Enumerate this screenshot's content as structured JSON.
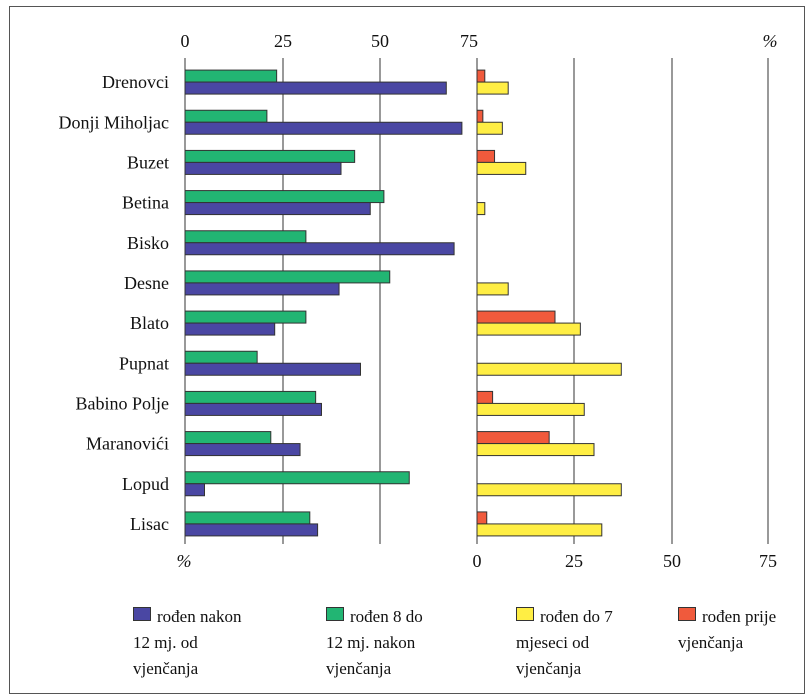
{
  "chart_data": {
    "type": "bar",
    "orientation": "horizontal",
    "categories": [
      "Drenovci",
      "Donji Miholjac",
      "Buzet",
      "Betina",
      "Bisko",
      "Desne",
      "Blato",
      "Pupnat",
      "Babino Polje",
      "Maranovići",
      "Lopud",
      "Lisac"
    ],
    "left_panel": {
      "ticks": [
        "0",
        "25",
        "50",
        "75"
      ],
      "unit_label_top": "%",
      "unit_label_bottom": "%",
      "xlim": [
        0,
        75
      ],
      "series": [
        {
          "key": "s8to12",
          "color": "#22b573",
          "values": [
            23.5,
            21,
            43.5,
            51,
            31,
            52.5,
            31,
            18.5,
            33.5,
            22,
            57.5,
            32
          ]
        },
        {
          "key": "s12plus",
          "color": "#4a47a3",
          "values": [
            67,
            71,
            40,
            47.5,
            69,
            39.5,
            23,
            45,
            35,
            29.5,
            5,
            34
          ]
        }
      ]
    },
    "right_panel": {
      "ticks": [
        "0",
        "25",
        "50",
        "75"
      ],
      "unit_label_top": "%",
      "xlim": [
        0,
        75
      ],
      "series": [
        {
          "key": "sbefore",
          "color": "#f05a3c",
          "values": [
            2,
            1.5,
            4.5,
            0,
            0,
            0,
            20,
            0,
            4,
            18.5,
            0,
            2.5
          ]
        },
        {
          "key": "supto7",
          "color": "#ffee44",
          "values": [
            8,
            6.5,
            12.5,
            2,
            0,
            8,
            26.5,
            37,
            27.5,
            30,
            37,
            32
          ]
        }
      ]
    },
    "grid": true,
    "legend": {
      "position": "bottom",
      "items": [
        {
          "label": "rođen nakon\n12 mj. od\nvjenčanja",
          "color": "#4a47a3"
        },
        {
          "label": "rođen 8 do\n12 mj. nakon\nvjenčanja",
          "color": "#22b573"
        },
        {
          "label": "rođen do 7\nmjeseci od\nvjenčanja",
          "color": "#ffee44"
        },
        {
          "label": "rođen prije\nvjenčanja",
          "color": "#f05a3c"
        }
      ]
    }
  }
}
